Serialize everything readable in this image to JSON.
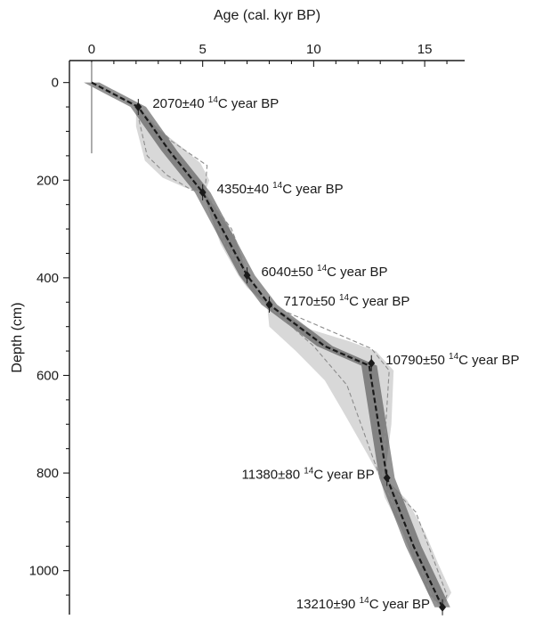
{
  "chart_data": {
    "type": "line",
    "title": "",
    "xlabel": "Age (cal. kyr BP)",
    "ylabel": "Depth (cm)",
    "xlim": [
      -1,
      16.8
    ],
    "ylim": [
      1090,
      -45
    ],
    "x_axis_position": "top",
    "y_inverted": true,
    "grid": false,
    "x_ticks": [
      0,
      5,
      10,
      15
    ],
    "x_tick_labels": [
      "0",
      "5",
      "10",
      "15"
    ],
    "y_ticks": [
      0,
      200,
      400,
      600,
      800,
      1000
    ],
    "y_tick_labels": [
      "0",
      "200",
      "400",
      "600",
      "800",
      "1000"
    ],
    "colors": {
      "ink": "#1a1a1a",
      "envelope": "#7a7a7a",
      "bounds": "#8c8c8c",
      "marker_line": "#9a9a9a"
    },
    "series": [
      {
        "role": "median age-depth model",
        "x": [
          0,
          2.1,
          3.5,
          5.0,
          7.0,
          8.0,
          10.5,
          12.5,
          13.3,
          14.5,
          15.8
        ],
        "y": [
          0,
          50,
          140,
          225,
          395,
          455,
          540,
          580,
          810,
          950,
          1075
        ]
      },
      {
        "role": "lower age bound",
        "x": [
          0,
          2.0,
          2.5,
          3.4,
          4.5,
          5.0,
          6.0,
          7.0,
          7.9,
          10.0,
          11.5,
          12.6,
          13.0,
          14.0,
          15.4,
          15.8
        ],
        "y": [
          0,
          50,
          150,
          190,
          220,
          225,
          330,
          395,
          455,
          540,
          620,
          760,
          810,
          900,
          1060,
          1075
        ]
      },
      {
        "role": "upper age bound",
        "x": [
          0,
          2.1,
          3.6,
          5.2,
          5.1,
          6.3,
          7.1,
          8.0,
          12.6,
          13.4,
          13.1,
          14.6,
          16.0,
          15.8
        ],
        "y": [
          0,
          50,
          120,
          170,
          225,
          300,
          395,
          455,
          545,
          590,
          810,
          880,
          1050,
          1075
        ]
      }
    ],
    "envelope": {
      "upper": [
        [
          0,
          0
        ],
        [
          2.1,
          50
        ],
        [
          3.0,
          95
        ],
        [
          4.0,
          130
        ],
        [
          4.9,
          165
        ],
        [
          5.3,
          200
        ],
        [
          5.1,
          225
        ],
        [
          5.7,
          265
        ],
        [
          6.5,
          320
        ],
        [
          7.0,
          395
        ],
        [
          7.4,
          425
        ],
        [
          8.0,
          455
        ],
        [
          9.8,
          505
        ],
        [
          11.6,
          530
        ],
        [
          12.8,
          550
        ],
        [
          13.6,
          590
        ],
        [
          13.5,
          700
        ],
        [
          13.2,
          810
        ],
        [
          14.2,
          855
        ],
        [
          15.0,
          920
        ],
        [
          15.6,
          985
        ],
        [
          16.2,
          1045
        ],
        [
          15.8,
          1075
        ]
      ],
      "lower": [
        [
          15.8,
          1075
        ],
        [
          15.2,
          1050
        ],
        [
          14.6,
          990
        ],
        [
          14.0,
          920
        ],
        [
          13.2,
          850
        ],
        [
          13.0,
          810
        ],
        [
          12.4,
          760
        ],
        [
          11.4,
          680
        ],
        [
          10.5,
          610
        ],
        [
          9.2,
          550
        ],
        [
          8.0,
          500
        ],
        [
          7.9,
          455
        ],
        [
          7.0,
          420
        ],
        [
          6.6,
          395
        ],
        [
          5.8,
          330
        ],
        [
          5.0,
          225
        ],
        [
          4.2,
          215
        ],
        [
          3.2,
          195
        ],
        [
          2.4,
          160
        ],
        [
          2.0,
          90
        ],
        [
          2.0,
          50
        ],
        [
          0,
          0
        ]
      ]
    },
    "dates": [
      {
        "age_x": 2.1,
        "depth": 50,
        "label_main": "2070±40 ",
        "label_sup": "14",
        "label_tail": "C year BP",
        "label_side": "right"
      },
      {
        "age_x": 5.0,
        "depth": 225,
        "label_main": "4350±40 ",
        "label_sup": "14",
        "label_tail": "C year BP",
        "label_side": "right"
      },
      {
        "age_x": 7.0,
        "depth": 395,
        "label_main": "6040±50 ",
        "label_sup": "14",
        "label_tail": "C year BP",
        "label_side": "right"
      },
      {
        "age_x": 8.0,
        "depth": 455,
        "label_main": "7170±50 ",
        "label_sup": "14",
        "label_tail": "C year BP",
        "label_side": "right"
      },
      {
        "age_x": 12.6,
        "depth": 575,
        "label_main": "10790±50 ",
        "label_sup": "14",
        "label_tail": "C year BP",
        "label_side": "right"
      },
      {
        "age_x": 13.3,
        "depth": 810,
        "label_main": "11380±80 ",
        "label_sup": "14",
        "label_tail": "C year BP",
        "label_side": "left"
      },
      {
        "age_x": 15.8,
        "depth": 1075,
        "label_main": "13210±90 ",
        "label_sup": "14",
        "label_tail": "C year BP",
        "label_side": "left"
      }
    ]
  }
}
